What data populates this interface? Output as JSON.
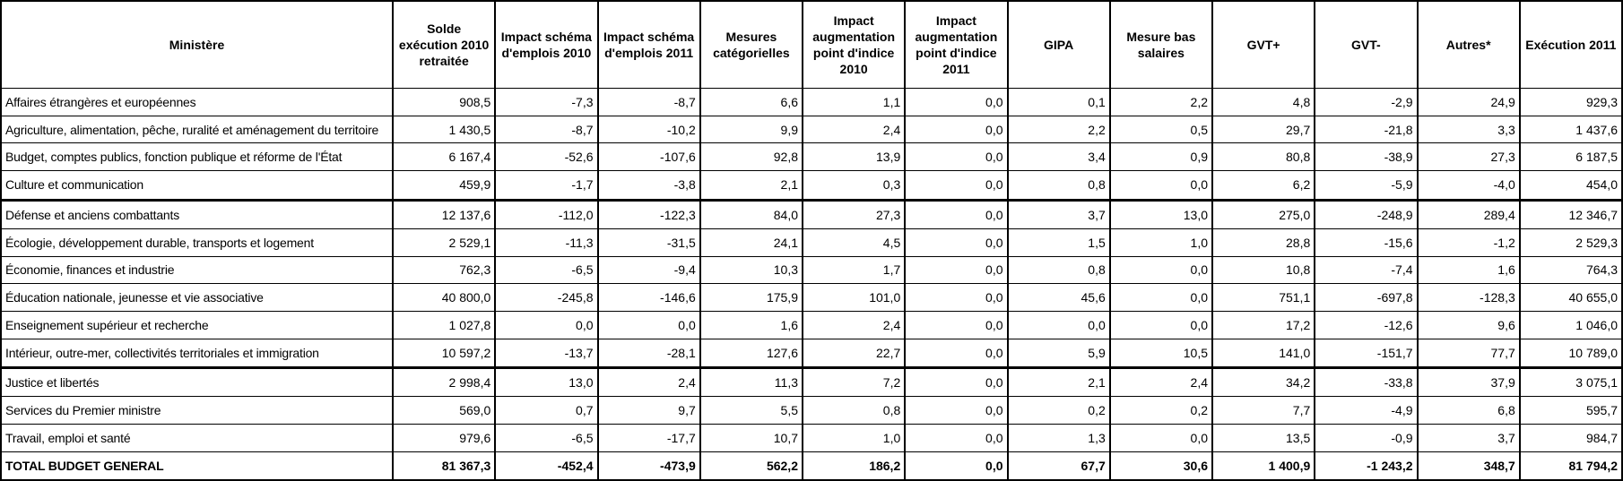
{
  "table": {
    "columns": [
      "Ministère",
      "Solde exécution 2010 retraitée",
      "Impact schéma d'emplois 2010",
      "Impact schéma d'emplois 2011",
      "Mesures catégorielles",
      "Impact augmentation point d'indice 2010",
      "Impact augmentation point d'indice 2011",
      "GIPA",
      "Mesure bas salaires",
      "GVT+",
      "GVT-",
      "Autres*",
      "Exécution 2011"
    ],
    "rows": [
      {
        "ministere": "Affaires étrangères et européennes",
        "values": [
          "908,5",
          "-7,3",
          "-8,7",
          "6,6",
          "1,1",
          "0,0",
          "0,1",
          "2,2",
          "4,8",
          "-2,9",
          "24,9",
          "929,3"
        ],
        "bold": false,
        "thick_border_below": false
      },
      {
        "ministere": "Agriculture, alimentation, pêche, ruralité et aménagement du territoire",
        "values": [
          "1 430,5",
          "-8,7",
          "-10,2",
          "9,9",
          "2,4",
          "0,0",
          "2,2",
          "0,5",
          "29,7",
          "-21,8",
          "3,3",
          "1 437,6"
        ],
        "bold": false,
        "thick_border_below": false
      },
      {
        "ministere": "Budget, comptes publics, fonction publique et réforme de l'État",
        "values": [
          "6 167,4",
          "-52,6",
          "-107,6",
          "92,8",
          "13,9",
          "0,0",
          "3,4",
          "0,9",
          "80,8",
          "-38,9",
          "27,3",
          "6 187,5"
        ],
        "bold": false,
        "thick_border_below": false
      },
      {
        "ministere": "Culture et communication",
        "values": [
          "459,9",
          "-1,7",
          "-3,8",
          "2,1",
          "0,3",
          "0,0",
          "0,8",
          "0,0",
          "6,2",
          "-5,9",
          "-4,0",
          "454,0"
        ],
        "bold": false,
        "thick_border_below": true
      },
      {
        "ministere": "Défense et anciens combattants",
        "values": [
          "12 137,6",
          "-112,0",
          "-122,3",
          "84,0",
          "27,3",
          "0,0",
          "3,7",
          "13,0",
          "275,0",
          "-248,9",
          "289,4",
          "12 346,7"
        ],
        "bold": false,
        "thick_border_below": false
      },
      {
        "ministere": "Écologie, développement durable, transports et logement",
        "values": [
          "2 529,1",
          "-11,3",
          "-31,5",
          "24,1",
          "4,5",
          "0,0",
          "1,5",
          "1,0",
          "28,8",
          "-15,6",
          "-1,2",
          "2 529,3"
        ],
        "bold": false,
        "thick_border_below": false
      },
      {
        "ministere": "Économie, finances et industrie",
        "values": [
          "762,3",
          "-6,5",
          "-9,4",
          "10,3",
          "1,7",
          "0,0",
          "0,8",
          "0,0",
          "10,8",
          "-7,4",
          "1,6",
          "764,3"
        ],
        "bold": false,
        "thick_border_below": false
      },
      {
        "ministere": "Éducation nationale, jeunesse et vie associative",
        "values": [
          "40 800,0",
          "-245,8",
          "-146,6",
          "175,9",
          "101,0",
          "0,0",
          "45,6",
          "0,0",
          "751,1",
          "-697,8",
          "-128,3",
          "40 655,0"
        ],
        "bold": false,
        "thick_border_below": false
      },
      {
        "ministere": "Enseignement supérieur et recherche",
        "values": [
          "1 027,8",
          "0,0",
          "0,0",
          "1,6",
          "2,4",
          "0,0",
          "0,0",
          "0,0",
          "17,2",
          "-12,6",
          "9,6",
          "1 046,0"
        ],
        "bold": false,
        "thick_border_below": false
      },
      {
        "ministere": "Intérieur, outre-mer, collectivités territoriales et immigration",
        "values": [
          "10 597,2",
          "-13,7",
          "-28,1",
          "127,6",
          "22,7",
          "0,0",
          "5,9",
          "10,5",
          "141,0",
          "-151,7",
          "77,7",
          "10 789,0"
        ],
        "bold": false,
        "thick_border_below": true
      },
      {
        "ministere": "Justice et libertés",
        "values": [
          "2 998,4",
          "13,0",
          "2,4",
          "11,3",
          "7,2",
          "0,0",
          "2,1",
          "2,4",
          "34,2",
          "-33,8",
          "37,9",
          "3 075,1"
        ],
        "bold": false,
        "thick_border_below": false
      },
      {
        "ministere": "Services du Premier ministre",
        "values": [
          "569,0",
          "0,7",
          "9,7",
          "5,5",
          "0,8",
          "0,0",
          "0,2",
          "0,2",
          "7,7",
          "-4,9",
          "6,8",
          "595,7"
        ],
        "bold": false,
        "thick_border_below": false
      },
      {
        "ministere": "Travail, emploi et santé",
        "values": [
          "979,6",
          "-6,5",
          "-17,7",
          "10,7",
          "1,0",
          "0,0",
          "1,3",
          "0,0",
          "13,5",
          "-0,9",
          "3,7",
          "984,7"
        ],
        "bold": false,
        "thick_border_below": false
      },
      {
        "ministere": "TOTAL BUDGET GENERAL",
        "values": [
          "81 367,3",
          "-452,4",
          "-473,9",
          "562,2",
          "186,2",
          "0,0",
          "67,7",
          "30,6",
          "1 400,9",
          "-1 243,2",
          "348,7",
          "81 794,2"
        ],
        "bold": true,
        "thick_border_below": false
      }
    ],
    "colors": {
      "grid": "#000000",
      "background": "#ffffff",
      "text": "#000000"
    }
  }
}
